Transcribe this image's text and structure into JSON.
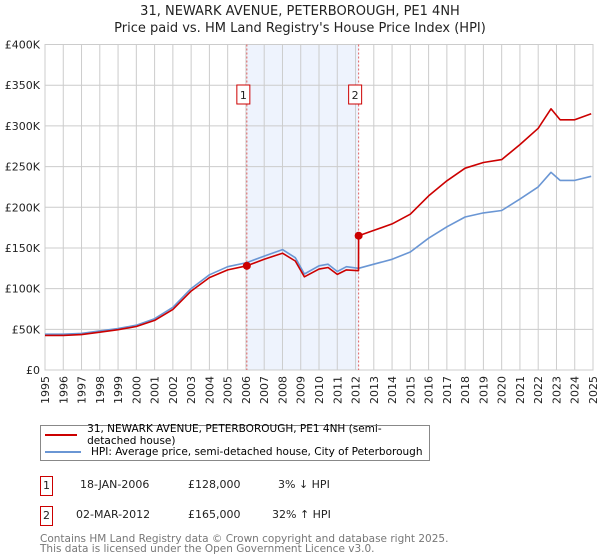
{
  "title_line1": "31, NEWARK AVENUE, PETERBOROUGH, PE1 4NH",
  "title_line2": "Price paid vs. HM Land Registry's House Price Index (HPI)",
  "chart_data": {
    "type": "line",
    "title": "31, NEWARK AVENUE, PETERBOROUGH, PE1 4NH - Price paid vs. HM Land Registry's House Price Index (HPI)",
    "xlim": [
      1995,
      2025
    ],
    "ylim": [
      0,
      400000
    ],
    "y_ticks": [
      0,
      50000,
      100000,
      150000,
      200000,
      250000,
      300000,
      350000,
      400000
    ],
    "y_tick_labels": [
      "£0",
      "£50K",
      "£100K",
      "£150K",
      "£200K",
      "£250K",
      "£300K",
      "£350K",
      "£400K"
    ],
    "x_ticks": [
      "1995",
      "1996",
      "1997",
      "1998",
      "1999",
      "2000",
      "2001",
      "2002",
      "2003",
      "2004",
      "2005",
      "2006",
      "2007",
      "2008",
      "2009",
      "2010",
      "2011",
      "2012",
      "2013",
      "2014",
      "2015",
      "2016",
      "2017",
      "2018",
      "2019",
      "2020",
      "2021",
      "2022",
      "2023",
      "2024",
      "2025"
    ],
    "grid": true,
    "shaded_range": [
      2006.05,
      2012.17
    ],
    "series": [
      {
        "name": "31, NEWARK AVENUE, PETERBOROUGH, PE1 4NH (semi-detached house)",
        "color": "#cc0000",
        "x": [
          1995,
          1996,
          1997,
          1998,
          1999,
          2000,
          2001,
          2002,
          2003,
          2004,
          2005,
          2006.05,
          2007,
          2008,
          2008.7,
          2009.2,
          2010,
          2010.5,
          2011,
          2011.5,
          2012.16,
          2012.17,
          2013,
          2014,
          2015,
          2016,
          2017,
          2018,
          2019,
          2020,
          2021,
          2022,
          2022.7,
          2023.2,
          2024,
          2024.9
        ],
        "y": [
          42500,
          42500,
          43500,
          46500,
          49500,
          53500,
          61000,
          74500,
          97000,
          113500,
          123000,
          128000,
          136000,
          143500,
          134000,
          114500,
          124000,
          126000,
          117500,
          123000,
          122000,
          165000,
          171500,
          179500,
          191500,
          214000,
          232500,
          248000,
          255000,
          258500,
          277000,
          297000,
          321000,
          307500,
          307500,
          315000
        ]
      },
      {
        "name": "HPI: Average price, semi-detached house, City of Peterborough",
        "color": "#6a96d4",
        "x": [
          1995,
          1996,
          1997,
          1998,
          1999,
          2000,
          2001,
          2002,
          2003,
          2004,
          2005,
          2006.05,
          2007,
          2008,
          2008.7,
          2009.2,
          2010,
          2010.5,
          2011,
          2011.5,
          2012.17,
          2013,
          2014,
          2015,
          2016,
          2017,
          2018,
          2019,
          2020,
          2021,
          2022,
          2022.7,
          2023.2,
          2024,
          2024.9
        ],
        "y": [
          44000,
          44000,
          45000,
          48000,
          51000,
          55000,
          63000,
          77000,
          100000,
          117000,
          127000,
          132000,
          140000,
          148000,
          138000,
          118000,
          128000,
          130000,
          121000,
          127000,
          125000,
          130000,
          136000,
          145000,
          162000,
          176000,
          188000,
          193000,
          196000,
          210000,
          225000,
          243000,
          233000,
          233000,
          238000
        ]
      }
    ],
    "markers": [
      {
        "label": "1",
        "x": 2006.05,
        "y": 128000
      },
      {
        "label": "2",
        "x": 2012.17,
        "y": 165000
      }
    ]
  },
  "legend": [
    {
      "label": "31, NEWARK AVENUE, PETERBOROUGH, PE1 4NH (semi-detached house)",
      "color": "#cc0000"
    },
    {
      "label": "HPI: Average price, semi-detached house, City of Peterborough",
      "color": "#6a96d4"
    }
  ],
  "transactions": [
    {
      "num": "1",
      "date": "18-JAN-2006",
      "price": "£128,000",
      "hpi": "3% ↓ HPI"
    },
    {
      "num": "2",
      "date": "02-MAR-2012",
      "price": "£165,000",
      "hpi": "32% ↑ HPI"
    }
  ],
  "footer_line1": "Contains HM Land Registry data © Crown copyright and database right 2025.",
  "footer_line2": "This data is licensed under the Open Government Licence v3.0."
}
